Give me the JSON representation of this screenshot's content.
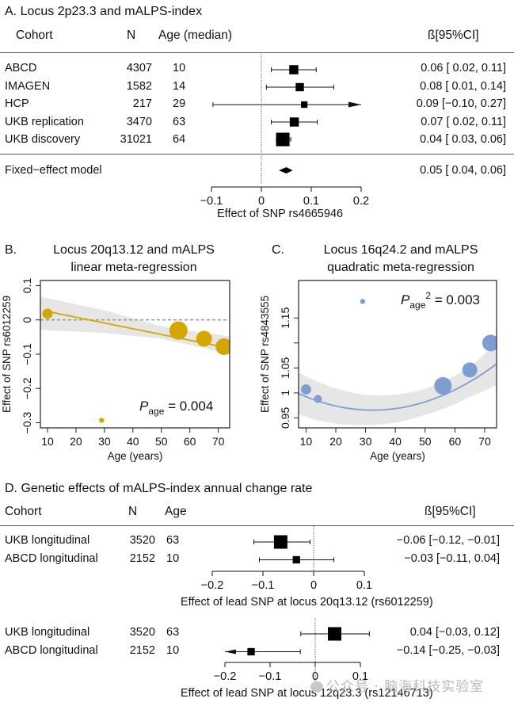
{
  "chart_data": [
    {
      "id": "A",
      "type": "forest",
      "panel_label": "A.",
      "title": "Locus 2p23.3 and mALPS-index",
      "columns": {
        "cohort": "Cohort",
        "n": "N",
        "age": "Age (median)",
        "ci": "ß[95%CI]"
      },
      "rows": [
        {
          "cohort": "ABCD",
          "n": "4307",
          "age": "10",
          "beta": 0.065,
          "lo": 0.02,
          "hi": 0.11,
          "weight": 0.5,
          "ci_text": "0.06 [ 0.02, 0.11]"
        },
        {
          "cohort": "IMAGEN",
          "n": "1582",
          "age": "14",
          "beta": 0.077,
          "lo": 0.01,
          "hi": 0.145,
          "weight": 0.4,
          "ci_text": "0.08 [ 0.01, 0.14]"
        },
        {
          "cohort": "HCP",
          "n": "217",
          "age": "29",
          "beta": 0.086,
          "lo": -0.097,
          "hi": 0.27,
          "weight": 0.2,
          "arrow_right": true,
          "ci_text": "0.09 [−0.10, 0.27]"
        },
        {
          "cohort": "UKB replication",
          "n": "3470",
          "age": "63",
          "beta": 0.066,
          "lo": 0.02,
          "hi": 0.112,
          "weight": 0.5,
          "ci_text": "0.07 [ 0.02, 0.11]"
        },
        {
          "cohort": "UKB discovery",
          "n": "31021",
          "age": "64",
          "beta": 0.043,
          "lo": 0.03,
          "hi": 0.059,
          "weight": 1.0,
          "ci_text": "0.04 [ 0.03, 0.06]"
        }
      ],
      "summary": {
        "label": "Fixed−effect model",
        "beta": 0.05,
        "lo": 0.035,
        "hi": 0.063,
        "ci_text": "0.05 [ 0.04, 0.06]"
      },
      "xlim": [
        -0.1,
        0.2
      ],
      "xticks": [
        -0.1,
        0,
        0.1,
        0.2
      ],
      "xtick_labels": [
        "−0.1",
        "0",
        "0.1",
        "0.2"
      ],
      "xlabel": "Effect of SNP rs4665946"
    },
    {
      "id": "B",
      "type": "scatter",
      "panel_label": "B.",
      "title": [
        "Locus 20q13.12 and mALPS",
        "linear meta-regression"
      ],
      "xlabel": "Age (years)",
      "ylabel": "Effect of SNP rs6012259",
      "xlim": [
        7.5,
        74
      ],
      "ylim": [
        -0.315,
        0.115
      ],
      "xticks": [
        10,
        20,
        30,
        40,
        50,
        60,
        70
      ],
      "yticks": [
        -0.3,
        -0.2,
        -0.1,
        0,
        0.1
      ],
      "ytick_labels": [
        "−0.3",
        "−0.2",
        "−0.1",
        "0",
        "0.1"
      ],
      "color": "#d4a600",
      "points": [
        {
          "x": 10,
          "y": 0.018,
          "size": 0.45
        },
        {
          "x": 29,
          "y": -0.293,
          "size": 0.12
        },
        {
          "x": 56,
          "y": -0.031,
          "size": 0.95
        },
        {
          "x": 65,
          "y": -0.055,
          "size": 0.8
        },
        {
          "x": 72,
          "y": -0.078,
          "size": 0.85
        }
      ],
      "fit": {
        "intercept": 0.0415,
        "slope": -0.00168
      },
      "band": [
        {
          "x": 7.5,
          "lo": -0.029,
          "hi": 0.068
        },
        {
          "x": 30,
          "lo": -0.038,
          "hi": 0.028
        },
        {
          "x": 50,
          "lo": -0.055,
          "hi": -0.018
        },
        {
          "x": 60,
          "lo": -0.073,
          "hi": -0.032
        },
        {
          "x": 74,
          "lo": -0.1,
          "hi": -0.048
        }
      ],
      "reference_line": 0,
      "annotation": {
        "p": "P",
        "sub": "age",
        "sup": "",
        "value": " = 0.004"
      }
    },
    {
      "id": "C",
      "type": "scatter",
      "panel_label": "C.",
      "title": [
        "Locus 16q24.2 and mALPS",
        "quadratic meta-regression"
      ],
      "xlabel": "Age (years)",
      "ylabel": "Effect of SNP rs4843555",
      "xlim": [
        7.5,
        74
      ],
      "ylim": [
        0.93,
        1.225
      ],
      "xticks": [
        10,
        20,
        30,
        40,
        50,
        60,
        70
      ],
      "yticks": [
        0.95,
        1,
        1.05,
        1.1,
        1.15
      ],
      "ytick_labels": [
        "0.95",
        "1",
        "1.05",
        "",
        "1.15"
      ],
      "color": "#7f9dd1",
      "points": [
        {
          "x": 10,
          "y": 1.007,
          "size": 0.45
        },
        {
          "x": 14,
          "y": 0.988,
          "size": 0.3
        },
        {
          "x": 29,
          "y": 1.183,
          "size": 0.12
        },
        {
          "x": 56,
          "y": 1.014,
          "size": 0.9
        },
        {
          "x": 65,
          "y": 1.046,
          "size": 0.75
        },
        {
          "x": 72,
          "y": 1.1,
          "size": 0.85
        }
      ],
      "fit": {
        "a": 1.0218,
        "b": -0.00347,
        "c": 5.35e-05
      },
      "band_halfwidth": [
        {
          "x": 7.5,
          "w": 0.042
        },
        {
          "x": 30,
          "w": 0.03
        },
        {
          "x": 50,
          "w": 0.026
        },
        {
          "x": 65,
          "w": 0.03
        },
        {
          "x": 74,
          "w": 0.042
        }
      ],
      "annotation": {
        "p": "P",
        "sub": "age",
        "sup": "2",
        "value": " = 0.003"
      }
    },
    {
      "id": "D1",
      "type": "forest",
      "panel_label": "D.",
      "title": "Genetic effects of mALPS-index annual change rate",
      "columns": {
        "cohort": "Cohort",
        "n": "N",
        "age": "Age",
        "ci": "ß[95%CI]"
      },
      "rows": [
        {
          "cohort": "UKB longitudinal",
          "n": "3520",
          "age": "63",
          "beta": -0.065,
          "lo": -0.118,
          "hi": -0.007,
          "weight": 1.0,
          "ci_text": "−0.06 [−0.12, −0.01]"
        },
        {
          "cohort": "ABCD longitudinal",
          "n": "2152",
          "age": "10",
          "beta": -0.034,
          "lo": -0.107,
          "hi": 0.04,
          "weight": 0.3,
          "ci_text": "−0.03 [−0.11,  0.04]"
        }
      ],
      "xlim": [
        -0.2,
        0.1
      ],
      "xticks": [
        -0.2,
        -0.1,
        0,
        0.1
      ],
      "xtick_labels": [
        "−0.2",
        "−0.1",
        "0",
        "0.1"
      ],
      "xlabel": "Effect of lead SNP at locus 20q13.12 (rs6012259)"
    },
    {
      "id": "D2",
      "type": "forest",
      "rows": [
        {
          "cohort": "UKB longitudinal",
          "n": "3520",
          "age": "63",
          "beta": 0.043,
          "lo": -0.032,
          "hi": 0.12,
          "weight": 1.0,
          "ci_text": "0.04 [−0.03,  0.12]"
        },
        {
          "cohort": "ABCD longitudinal",
          "n": "2152",
          "age": "10",
          "beta": -0.142,
          "lo": -0.2,
          "hi": -0.033,
          "weight": 0.3,
          "arrow_left": true,
          "ci_text": "−0.14 [−0.25, −0.03]"
        }
      ],
      "xlim": [
        -0.2,
        0.13
      ],
      "xticks": [
        -0.2,
        -0.1,
        0,
        0.1
      ],
      "xtick_labels": [
        "−0.2",
        "−0.1",
        "0",
        "0.1"
      ],
      "xlabel": "Effect of lead SNP at locus 12q23.3 (rs12146713)"
    }
  ],
  "watermark": "公众号 · 脑海科技实验室"
}
